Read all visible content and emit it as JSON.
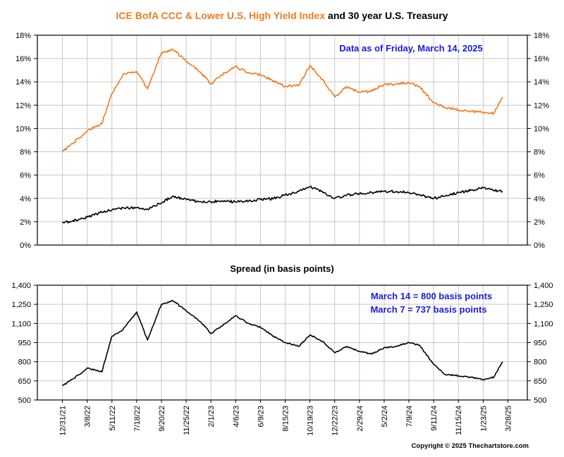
{
  "title": {
    "part1": "ICE BofA CCC & Lower U.S. High Yield Index",
    "part2": "and 30 year U.S. Treasury"
  },
  "colors": {
    "orange": "#f07a1c",
    "black": "#000000",
    "blue": "#1a1adb",
    "grid": "#c8c8c8"
  },
  "copyright": "Copyright © 2025 Thechartstore.com",
  "chart_data": [
    {
      "type": "line",
      "ylim": [
        0,
        18
      ],
      "yticks": [
        "0%",
        "2%",
        "4%",
        "6%",
        "8%",
        "10%",
        "12%",
        "14%",
        "16%",
        "18%"
      ],
      "annotations": [
        "Data as of Friday, March 14, 2025"
      ],
      "grid": true,
      "series": [
        {
          "color": "#f07a1c",
          "x": [
            "12/31/21",
            "2/15/22",
            "3/8/22",
            "4/15/22",
            "5/11/22",
            "6/10/22",
            "7/18/22",
            "8/15/22",
            "9/20/22",
            "10/20/22",
            "11/25/22",
            "1/5/23",
            "2/1/23",
            "3/1/23",
            "4/6/23",
            "5/10/23",
            "6/9/23",
            "7/15/23",
            "8/15/23",
            "9/20/23",
            "10/19/23",
            "11/20/23",
            "12/22/23",
            "1/25/24",
            "2/29/24",
            "4/1/24",
            "5/2/24",
            "6/5/24",
            "7/9/24",
            "8/5/24",
            "9/11/24",
            "10/10/24",
            "11/15/24",
            "12/20/24",
            "1/23/25",
            "2/20/25",
            "3/14/25"
          ],
          "values": [
            8.0,
            9.2,
            9.8,
            10.4,
            13.0,
            14.6,
            14.9,
            13.4,
            16.5,
            16.8,
            15.8,
            14.8,
            13.8,
            14.6,
            15.3,
            14.8,
            14.6,
            14.1,
            13.6,
            13.7,
            15.4,
            14.2,
            12.7,
            13.6,
            13.1,
            13.2,
            13.8,
            13.8,
            13.9,
            13.6,
            12.2,
            11.8,
            11.6,
            11.5,
            11.4,
            11.3,
            12.7
          ]
        },
        {
          "color": "#000000",
          "x": [
            "12/31/21",
            "2/15/22",
            "3/8/22",
            "4/15/22",
            "5/11/22",
            "6/10/22",
            "7/18/22",
            "8/15/22",
            "9/20/22",
            "10/20/22",
            "11/25/22",
            "1/5/23",
            "2/1/23",
            "3/1/23",
            "4/6/23",
            "5/10/23",
            "6/9/23",
            "7/15/23",
            "8/15/23",
            "9/20/23",
            "10/19/23",
            "11/20/23",
            "12/22/23",
            "1/25/24",
            "2/29/24",
            "4/1/24",
            "5/2/24",
            "6/5/24",
            "7/9/24",
            "8/5/24",
            "9/11/24",
            "10/10/24",
            "11/15/24",
            "12/20/24",
            "1/23/25",
            "2/20/25",
            "3/14/25"
          ],
          "values": [
            1.9,
            2.2,
            2.4,
            2.8,
            3.0,
            3.2,
            3.2,
            3.1,
            3.6,
            4.2,
            3.9,
            3.7,
            3.7,
            3.8,
            3.7,
            3.8,
            3.9,
            4.0,
            4.3,
            4.6,
            5.0,
            4.6,
            4.0,
            4.3,
            4.4,
            4.5,
            4.6,
            4.6,
            4.5,
            4.3,
            4.0,
            4.2,
            4.5,
            4.7,
            4.9,
            4.7,
            4.6
          ]
        }
      ]
    },
    {
      "type": "line",
      "title": "Spread (in basis points)",
      "ylim": [
        500,
        1400
      ],
      "yticks": [
        "500",
        "650",
        "800",
        "950",
        "1,100",
        "1,250",
        "1,400"
      ],
      "annotations": [
        "March 14 = 800 basis points",
        "March 7 = 737 basis points"
      ],
      "grid": true,
      "categories": [
        "12/31/21",
        "3/8/22",
        "5/11/22",
        "7/18/22",
        "9/20/22",
        "11/25/22",
        "2/1/23",
        "4/6/23",
        "6/9/23",
        "8/15/23",
        "10/19/23",
        "12/22/23",
        "2/29/24",
        "5/2/24",
        "7/9/24",
        "9/11/24",
        "11/15/24",
        "1/23/25",
        "3/28/25"
      ],
      "series": [
        {
          "color": "#000000",
          "x": [
            "12/31/21",
            "2/15/22",
            "3/8/22",
            "4/15/22",
            "5/11/22",
            "6/10/22",
            "7/18/22",
            "8/15/22",
            "9/20/22",
            "10/20/22",
            "11/25/22",
            "1/5/23",
            "2/1/23",
            "3/1/23",
            "4/6/23",
            "5/10/23",
            "6/9/23",
            "7/15/23",
            "8/15/23",
            "9/20/23",
            "10/19/23",
            "11/20/23",
            "12/22/23",
            "1/25/24",
            "2/29/24",
            "4/1/24",
            "5/2/24",
            "6/5/24",
            "7/9/24",
            "8/5/24",
            "9/11/24",
            "10/10/24",
            "11/15/24",
            "12/20/24",
            "1/23/25",
            "2/20/25",
            "3/14/25"
          ],
          "values": [
            610,
            700,
            750,
            720,
            1000,
            1050,
            1190,
            970,
            1250,
            1280,
            1200,
            1110,
            1020,
            1080,
            1160,
            1100,
            1070,
            1000,
            950,
            920,
            1010,
            960,
            870,
            920,
            880,
            860,
            910,
            920,
            950,
            930,
            780,
            700,
            690,
            680,
            660,
            680,
            800
          ]
        }
      ]
    }
  ]
}
